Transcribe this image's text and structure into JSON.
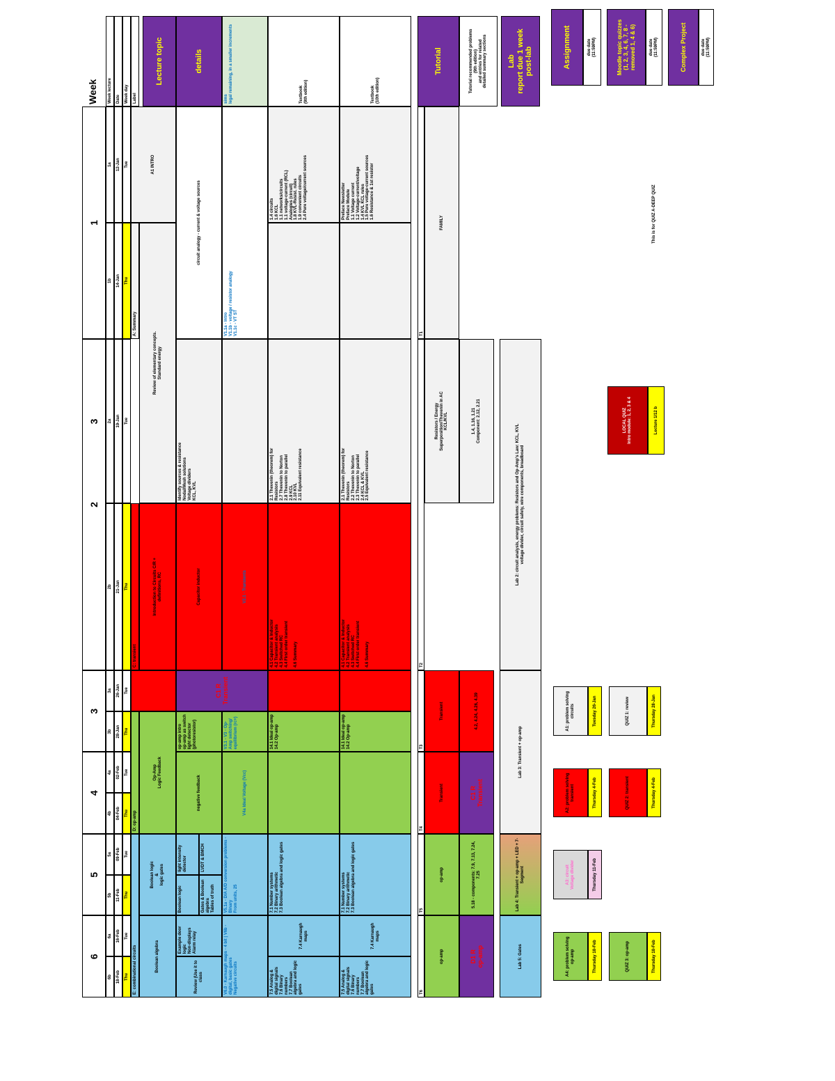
{
  "header": {
    "week_label": "Week",
    "row_labels": [
      "Week lecture",
      "Date",
      "Week day",
      "Label"
    ],
    "weeks": [
      {
        "number": "1",
        "days": [
          {
            "lecture": "1a",
            "date": "12-Jan",
            "day": "Tue"
          },
          {
            "lecture": "1b",
            "date": "14-Jan",
            "day": "Thu"
          }
        ]
      },
      {
        "number": "2",
        "days": [
          {
            "lecture": "2a",
            "date": "19-Jan",
            "day": "Tue"
          },
          {
            "lecture": "2b",
            "date": "21-Jan",
            "day": "Thu"
          }
        ]
      },
      {
        "number": "3",
        "days": [
          {
            "lecture": "3a",
            "date": "26-Jan",
            "day": "Tue"
          },
          {
            "lecture": "3b",
            "date": "28-Jan",
            "day": "Thu"
          }
        ]
      },
      {
        "number": "4",
        "days": [
          {
            "lecture": "4a",
            "date": "02-Feb",
            "day": "Tue"
          },
          {
            "lecture": "4b",
            "date": "04-Feb",
            "day": "Thu"
          }
        ]
      },
      {
        "number": "5",
        "days": [
          {
            "lecture": "5a",
            "date": "09-Feb",
            "day": "Tue"
          },
          {
            "lecture": "5b",
            "date": "11-Feb",
            "day": "Thu"
          }
        ]
      },
      {
        "number": "6",
        "days": [
          {
            "lecture": "6a",
            "date": "16-Feb",
            "day": "Tue"
          },
          {
            "lecture": "6b",
            "date": "18-Feb",
            "day": "Thu"
          }
        ]
      }
    ]
  },
  "rows": {
    "lecture_topic": "Lecture topic",
    "details": "details",
    "sims": "sims\nlegal remaining, in a smaller increments",
    "textbook": "Textbook\n(9th edition)",
    "textbook2": "Textbook\n(10th edition)",
    "tutorial": "Tutorial",
    "tutorial_note": "Tutorial recommended problems\n(9th edition)\nand entries for related\ndetailed summary sections",
    "lab": "Lab\nreport due 1 week\npost-lab",
    "assignment": "Assignment",
    "assign_due_label": "due date\n(11:59PM)",
    "quizzes": "Moodle topic quizzes\n(1, 2, 3, 4, 6, 7, 8 -\nremoved 1, 4 & 6)",
    "quiz_due_label": "due date\n(11:59PM)",
    "project": "Complex Project",
    "project_due_label": "due date\n(11:59PM)"
  },
  "lecture": {
    "week1_intro": "A1 INTRO",
    "summary_header": "A: Summary",
    "summary_topics": "Review of elementary concepts.\nStandard energy",
    "c_transient": "C: transient",
    "c_topic1": "Introduction to Circuits C/R +\ndefinitions, RC",
    "c_test": "C1 R\nTransient",
    "d_opamp": "D: op-amp",
    "d_topic": "Op-Amp\nLogic Feedback",
    "e_comb": "E: combinational circuits",
    "e_topic1": "Boolean logic\n&\nlogic gates",
    "e_topic2": "Boolean algebra"
  },
  "details": {
    "w1": "circuit analogy - current & voltage sources",
    "w2a": "Identify sources & resistance\nNodal/Mesh solutions\nVoltage dividers\nKCL, KVL",
    "w2b": "Capacitor inductor",
    "w3b": "op-amp intro\nop-amp as switch\nlight detector (photoresistor)",
    "w4": "negative feedback",
    "w5a1": "light intensity detector",
    "w5a2": "LVDT & BMCH",
    "w5b1": "Boolean logic",
    "w5b2": "Gates & Boolean algebra\nTables of truth",
    "w6a": "Example door logic\nNon-displays\nAlarm relay",
    "w6b": "Review (Use it to class"
  },
  "sims": {
    "w1": "V1.1a - Intro\nV1.1b - voltage / resistor analogy\nV1.1c - VT ST",
    "w2b": "V2.1 - Transients",
    "w3b": "V3.1 - V3 - Op-Amp switching/\nequilibrium (rc+)",
    "w4": "V4a Ideal Voltage (Vcc)",
    "w5": "V5.1a - D/A A/D conversion problems - Binary\nFrom units, 25",
    "w6": "V6.0 - Karnaugh maps - 4 bit  |  V6b - digital, basic gates\nNegative circuits"
  },
  "textbook9": {
    "w1": "1.4 circuits\n1.6 KCL\n1.1 networks/circuits\n1.1 voltage-current (RCL)\nAnalogies (circuit)\n1.8 KVL-Resist. rules\n1.9 convenient circuits\n2.4 Pure voltage/current sources",
    "w2a": "2.1 Thevenin (theorem) for\nResistors\n2.7 Thevenin to Norton\n2.8 Thevenin to parallel\n2.9 KCL\n2.10 KVL\n2.11 Equivalent resistance",
    "w2b": "4.1 Capacitor & Inductor\n4.2 Transient analysis\n4.3 Switched RC\n4.4 First order transient\n\n4.6 Summary",
    "w3b": "14.1 Ideal op-amp\n14.2 Op-amp",
    "w5a": "7.1 Number systems\n7.2 Binary arithmetic\n7.3 Boolean algebra and logic gates",
    "w6a": "7.4 Karnaugh maps",
    "w6b": "7.5 Analog & digital signals\n7.6 Binary numbers\n7.7 Boolean algebra and logic\ngates"
  },
  "textbook10": {
    "w1": "Preface Newsletter\nPreface Module\n1.1 Voltage current\n1.2 Voltage-current/voltage\n1.4 KVL KCL rules\n1.5 Pure voltage-current sources\n1.6 Resistance & 1st resistor",
    "w2a": "2.1 Thevenin (theorem) for\nResistors\n2.2 Thevenin to Norton\n2.3 Thevenin to parallel\n2.4 KCL & KVL\n2.5 Equivalent resistance",
    "w2b": "4.1 Capacitor & Inductor\n4.2 Transient analysis\n4.3 Switched RC\n4.4 First order transient\n\n4.6 Summary",
    "w3b": "14.1 Ideal op-amp\n14.2 Op-amp",
    "w5a": "7.1 Number systems\n7.2 Binary arithmetic\n7.3 Boolean algebra and logic gates",
    "w6a": "7.4 Karnaugh maps",
    "w6b": "7.5 Analog & digital signals\n7.6 Binary numbers\n7.7 Boolean algebra and logic\ngates"
  },
  "tutorial": {
    "t1": "T1",
    "t1_body": "FAMILY",
    "t2": "T2",
    "t2_body": "Resistors / Energy\nSuperposition/Thevenin in AC\nKCL/KVL",
    "t2_probs": "1.4, 1.16, 1.21\nComponent: 2.12, 2.21",
    "t3": "T3",
    "t3_body": "Transient",
    "t3_probs": "4.2, 4.24, 4.26, 4.39",
    "t4": "T4",
    "t4_body": "Transient",
    "t4_quiz": "C1 R\nTransient",
    "t5": "T5",
    "t5_body": "op-amp",
    "t5_probs": "5.18 - components: 7.9, 7.13, 7.24, 7.25",
    "t6": "T6",
    "t6_body": "op-amp",
    "t6_quiz": "D1 R\nop-amp"
  },
  "lab": {
    "l2": "Lab 2: circuit analysis, energy problems: Resistors and Op-Amp's Law: KCL, KVL\nvoltage divider, circuit safety, wire components, breadboard",
    "l3": "Lab 3: Transient + op-amp",
    "l4": "Lab 4: Transient + op-amp + LED + 7-Segment",
    "l5": "Lab 5: Gates"
  },
  "assignments": {
    "a0": "LOCAL QUIZ\nIntro module: 1, 2, 3 & 4",
    "a0_due": "Lecture 1/12 b",
    "a1": "A1: problem solving\ncircuits",
    "a1_due": "Tuesday 26-Jan",
    "a2": "A2: problem solving\ntransient",
    "a2_due": "Thursday 4-Feb",
    "a3": "A3: circuit\nVoltage divider",
    "a3_due": "Thursday 11-Feb",
    "a4": "A4: problem solving\nop-amp",
    "a4_due": "Thursday 18-Feb"
  },
  "quizzes": {
    "q1": "QUIZ 1: review",
    "q1_due": "Thursday 28-Jan",
    "q2": "QUIZ 2: transient",
    "q2_due": "Thursday 4-Feb",
    "q3": "QUIZ 3: op-amp",
    "q3_due": "Thursday 18-Feb",
    "note": "This is for QUIZ A-DEEP QUIZ"
  },
  "colors": {
    "purple": "#7030a0",
    "green": "#92d050",
    "blue": "#87cbea",
    "red": "#ff0000",
    "yellow": "#ffff00",
    "grey": "#f2f2f2"
  }
}
